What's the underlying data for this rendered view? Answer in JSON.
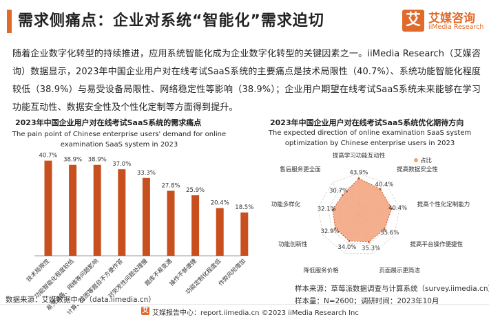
{
  "header": {
    "title": "需求侧痛点：企业对系统“智能化”需求迫切",
    "logo_glyph": "艾",
    "logo_cn": "艾媒咨询",
    "logo_en": "iiMedia Research"
  },
  "intro": "随着企业数字化转型的持续推进，应用系统智能化成为企业数字化转型的关键因素之一。iiMedia Research（艾媒咨询）数据显示，2023年中国企业用户对在线考试SaaS系统的主要痛点是技术局限性（40.7%）、系统功能智能化程度较低（38.9%）与易受设备局限性、网络稳定性等影响（38.9%）；企业用户期望在线考试SaaS系统未来能够在学习功能互动性、数据安全性及个性化定制等方面得到提升。",
  "chart_data": [
    {
      "type": "bar",
      "title_cn": "2023年中国企业用户对在线考试SaaS系统的需求痛点",
      "title_en_line1": "The pain point of Chinese enterprise users' demand for online",
      "title_en_line2": "examination SaaS system in 2023",
      "categories": [
        "技术局限性",
        "功能智能化程度较低",
        "易受设备、网络等问题影响",
        "计算、绘图等题目不方便作答",
        "对突发性问题处理慢",
        "题库不易变通",
        "操作不够便捷",
        "功能定制化程度低",
        "作弊风险增加"
      ],
      "values": [
        40.7,
        38.9,
        38.9,
        37.0,
        33.3,
        27.8,
        25.9,
        20.4,
        18.5
      ],
      "value_labels": [
        "40.7%",
        "38.9%",
        "38.9%",
        "37.0%",
        "33.3%",
        "27.8%",
        "25.9%",
        "20.4%",
        "18.5%"
      ],
      "ylim": [
        0,
        50
      ],
      "color": "#c8501e"
    },
    {
      "type": "radar",
      "title_cn": "2023年中国企业用户对在线考试SaaS系统优化期待方向",
      "title_en_line1": "The expected direction of online examination SaaS system",
      "title_en_line2": "optimization by Chinese enterprise users in 2023",
      "legend": "占比",
      "categories": [
        "提高学习功能互动性",
        "提高数据安全性",
        "提高个性化定制能力",
        "提高平台操作便捷性",
        "页面展示更简洁",
        "降低服务价格",
        "功能创新性",
        "功能多样化",
        "售后服务更全面"
      ],
      "values": [
        43.9,
        40.4,
        40.4,
        35.6,
        35.3,
        34.0,
        32.9,
        32.1,
        30.7
      ],
      "value_labels": [
        "43.9%",
        "40.4%",
        "40.4%",
        "35.6%",
        "35.3%",
        "34.0%",
        "32.9%",
        "32.1%",
        "30.7%"
      ],
      "rmax": 50,
      "color": "#f2a27a"
    }
  ],
  "notes": {
    "source_left": "数据来源：艾媒数据中心（data.iimedia.cn）",
    "sample_source": "样本来源：草莓派数据调查与计算系统（survey.iimedia.cn）",
    "sample_size": "样本量：N=2600；调研时间：2023年10月"
  },
  "footer": {
    "glyph": "艾",
    "text": "艾媒报告中心：report.iimedia.cn  ©2023  iiMedia Research  Inc"
  }
}
